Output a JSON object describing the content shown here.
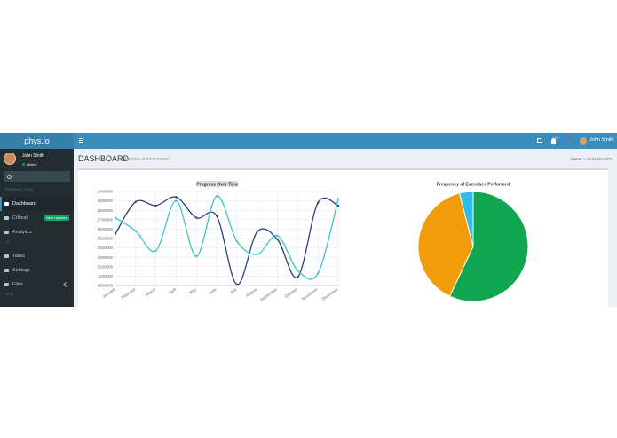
{
  "navbar": {
    "brand": "phys.io",
    "user": "John Smith"
  },
  "sidebar": {
    "user": {
      "name": "John Smith",
      "status": "Online"
    },
    "sections": [
      {
        "header": "Marketing Tools",
        "items": [
          {
            "label": "Dashboard"
          },
          {
            "label": "Critical",
            "badge": "New Updates"
          },
          {
            "label": "Analytics"
          }
        ]
      },
      {
        "header": "Hr",
        "items": [
          {
            "label": "Tasks"
          },
          {
            "label": "Settings"
          },
          {
            "label": "Files"
          }
        ]
      },
      {
        "header": "Help",
        "items": []
      }
    ]
  },
  "page_header": {
    "title": "DASHBOARD",
    "subtitle": "Overview of environment"
  },
  "breadcrumb": [
    "Home",
    "DASHBOARD"
  ],
  "line_chart": {
    "type": "line",
    "title": "Progress Over Time",
    "categories": [
      "January",
      "February",
      "March",
      "April",
      "May",
      "June",
      "July",
      "August",
      "September",
      "October",
      "November",
      "December"
    ],
    "series": [
      {
        "color": "#2b3d7c",
        "values": [
          1550000,
          1890000,
          1850000,
          1940000,
          1720000,
          1740000,
          1010000,
          1570000,
          1490000,
          1090000,
          1880000,
          1850000
        ]
      },
      {
        "color": "#44c3c3",
        "values": [
          1720000,
          1580000,
          1370000,
          1900000,
          1310000,
          1950000,
          1470000,
          1330000,
          1530000,
          1160000,
          1130000,
          1920000
        ]
      }
    ],
    "ylim": [
      1000000,
      2000000
    ],
    "yticks": [
      1000000,
      1100000,
      1200000,
      1300000,
      1400000,
      1500000,
      1600000,
      1700000,
      1800000,
      1900000,
      2000000
    ],
    "grid": true
  },
  "pie_chart": {
    "type": "pie",
    "title": "Frequency of Exercises Performed",
    "values": [
      57,
      39,
      4
    ],
    "colors": [
      "#0fa650",
      "#f29c0a",
      "#2abde6"
    ]
  }
}
